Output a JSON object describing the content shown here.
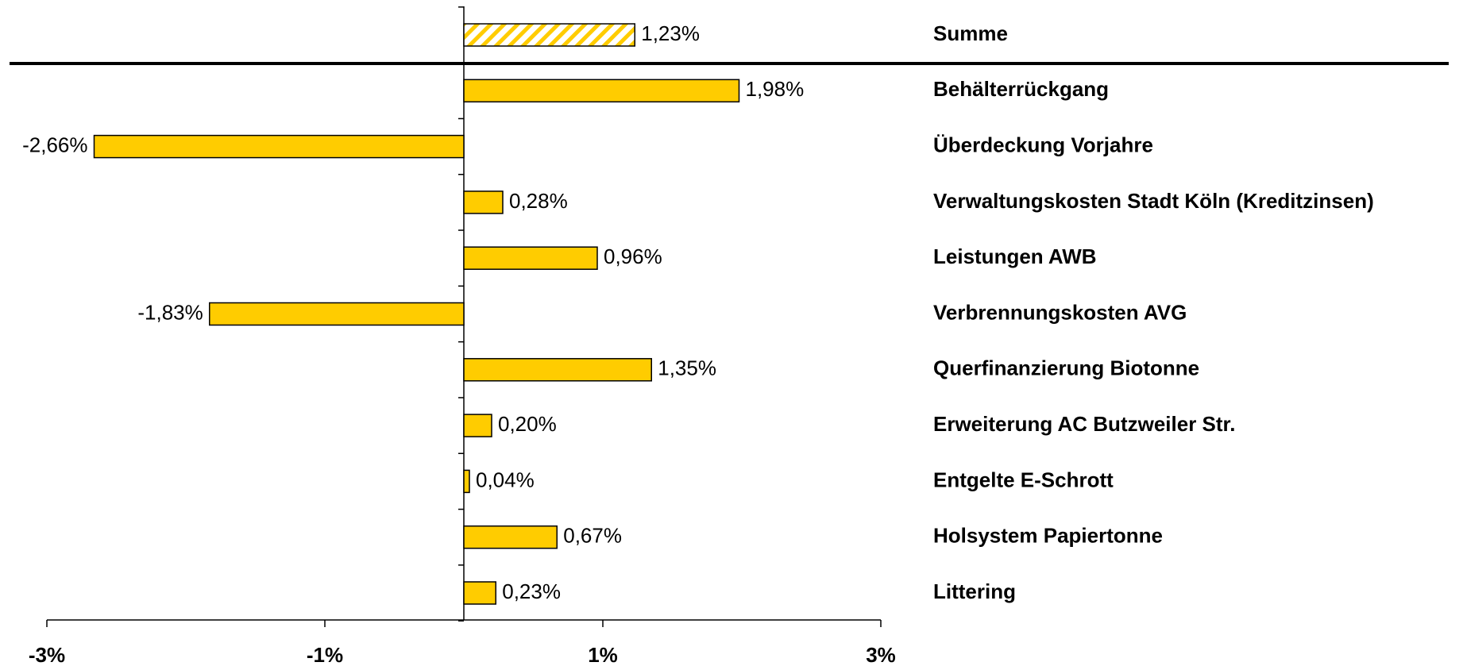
{
  "chart_data": {
    "type": "bar",
    "orientation": "horizontal",
    "categories": [
      "Summe",
      "Behälterrückgang",
      "Überdeckung Vorjahre",
      "Verwaltungskosten Stadt Köln (Kreditzinsen)",
      "Leistungen AWB",
      "Verbrennungskosten AVG",
      "Querfinanzierung Biotonne",
      "Erweiterung AC Butzweiler Str.",
      "Entgelte E-Schrott",
      "Holsystem Papiertonne",
      "Littering"
    ],
    "values": [
      1.23,
      1.98,
      -2.66,
      0.28,
      0.96,
      -1.83,
      1.35,
      0.2,
      0.04,
      0.67,
      0.23
    ],
    "value_labels": [
      "1,23%",
      "1,98%",
      "-2,66%",
      "0,28%",
      "0,96%",
      "-1,83%",
      "1,35%",
      "0,20%",
      "0,04%",
      "0,67%",
      "0,23%"
    ],
    "hatched": [
      true,
      false,
      false,
      false,
      false,
      false,
      false,
      false,
      false,
      false,
      false
    ],
    "color": "#ffcc00",
    "xlim": [
      -3,
      3
    ],
    "xticks": [
      {
        "value": -3,
        "label": "-3%"
      },
      {
        "value": -1,
        "label": "-1%"
      },
      {
        "value": 1,
        "label": "1%"
      },
      {
        "value": 3,
        "label": "3%"
      }
    ]
  }
}
